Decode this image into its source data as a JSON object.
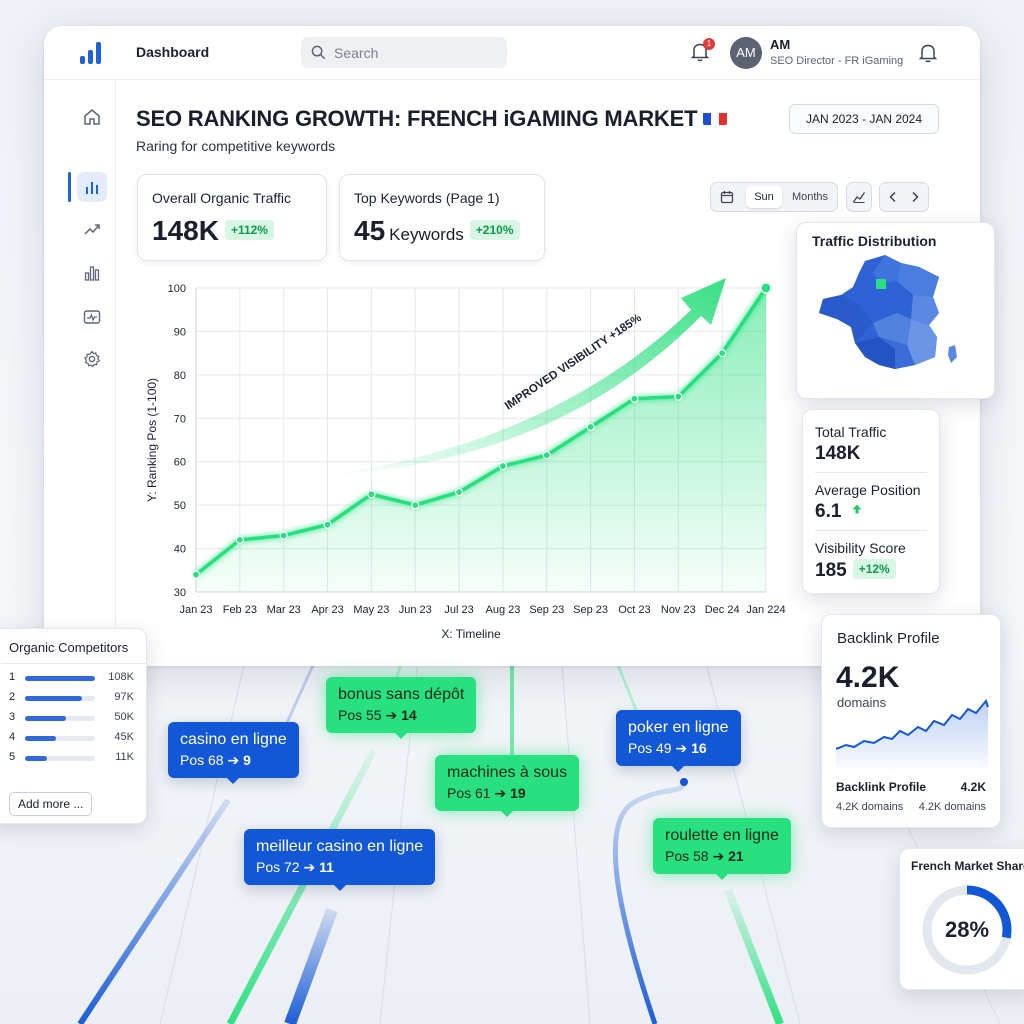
{
  "header": {
    "nav_title": "Dashboard",
    "search_placeholder": "Search",
    "notification_count": "1",
    "user_initials": "AM",
    "user_name": "AM",
    "user_role": "SEO Director - FR iGaming"
  },
  "sidebar": {
    "items": [
      {
        "icon": "home-icon",
        "active": false
      },
      {
        "icon": "bar-chart-icon",
        "active": true
      },
      {
        "icon": "trend-up-icon",
        "active": false
      },
      {
        "icon": "analytics-icon",
        "active": false
      },
      {
        "icon": "pulse-monitor-icon",
        "active": false
      },
      {
        "icon": "gear-icon",
        "active": false
      }
    ]
  },
  "page": {
    "title": "SEO RANKING GROWTH: FRENCH iGAMING MARKET",
    "subtitle": "Raring for competitive keywords",
    "date_range": "JAN 2023 - JAN 2024"
  },
  "kpis": [
    {
      "label": "Overall Organic Traffic",
      "value": "148K",
      "unit": "",
      "change": "+112%"
    },
    {
      "label": "Top Keywords (Page 1)",
      "value": "45",
      "unit": "Keywords",
      "change": "+210%"
    }
  ],
  "toolbar": {
    "segments": [
      "Sun",
      "Months"
    ],
    "active_segment": "Sun"
  },
  "chart_data": {
    "type": "line",
    "categories": [
      "Jan 23",
      "Feb 23",
      "Mar 23",
      "Apr 23",
      "May 23",
      "Jun 23",
      "Jul 23",
      "Aug 23",
      "Sep 23",
      "Sep 23",
      "Oct 23",
      "Nov 23",
      "Dec 24",
      "Jan 224"
    ],
    "series": [
      {
        "values": [
          34,
          42,
          43,
          45.5,
          52.5,
          50,
          53,
          59,
          61.5,
          68,
          74.5,
          75,
          85,
          100
        ]
      }
    ],
    "ylim": [
      30,
      100
    ],
    "yticks": [
      30,
      40,
      50,
      60,
      70,
      80,
      90,
      100
    ],
    "xlabel": "X: Timeline",
    "ylabel": "Y: Ranking Pos (1-100)",
    "annotation": "IMPROVED VISIBILITY +185%",
    "grid": true,
    "line_color": "#28e07f"
  },
  "traffic_distribution": {
    "title": "Traffic Distribution"
  },
  "stats": [
    {
      "label": "Total Traffic",
      "value": "148K",
      "change": ""
    },
    {
      "label": "Average Position",
      "value": "6.1",
      "change": ""
    },
    {
      "label": "Visibility Score",
      "value": "185",
      "change": "+12%"
    }
  ],
  "backlinks": {
    "title": "Backlink Profile",
    "value": "4.2K",
    "unit": "domains",
    "footer_label": "Backlink Profile",
    "footer_value": "4.2K",
    "footer_sub_left": "4.2K domains",
    "footer_sub_right": "4.2K domains"
  },
  "market_share": {
    "title": "French Market Share",
    "value": "28%",
    "fraction": 0.28
  },
  "competitors": {
    "title": "Organic Competitors",
    "rows": [
      {
        "rank": "1",
        "value": "108K",
        "fraction": 1.0
      },
      {
        "rank": "2",
        "value": "97K",
        "fraction": 0.82
      },
      {
        "rank": "3",
        "value": "50K",
        "fraction": 0.58
      },
      {
        "rank": "4",
        "value": "45K",
        "fraction": 0.44
      },
      {
        "rank": "5",
        "value": "11K",
        "fraction": 0.31
      }
    ],
    "add_label": "Add more ..."
  },
  "keywords": [
    {
      "keyword": "casino en ligne",
      "from": "Pos 68",
      "to": "9",
      "color": "blue"
    },
    {
      "keyword": "bonus sans dépôt",
      "from": "Pos 55",
      "to": "14",
      "color": "green"
    },
    {
      "keyword": "machines à sous",
      "from": "Pos 61",
      "to": "19",
      "color": "green"
    },
    {
      "keyword": "poker en ligne",
      "from": "Pos 49",
      "to": "16",
      "color": "blue"
    },
    {
      "keyword": "meilleur casino en ligne",
      "from": "Pos 72",
      "to": "11",
      "color": "blue"
    },
    {
      "keyword": "roulette en ligne",
      "from": "Pos 58",
      "to": "21",
      "color": "green"
    }
  ]
}
